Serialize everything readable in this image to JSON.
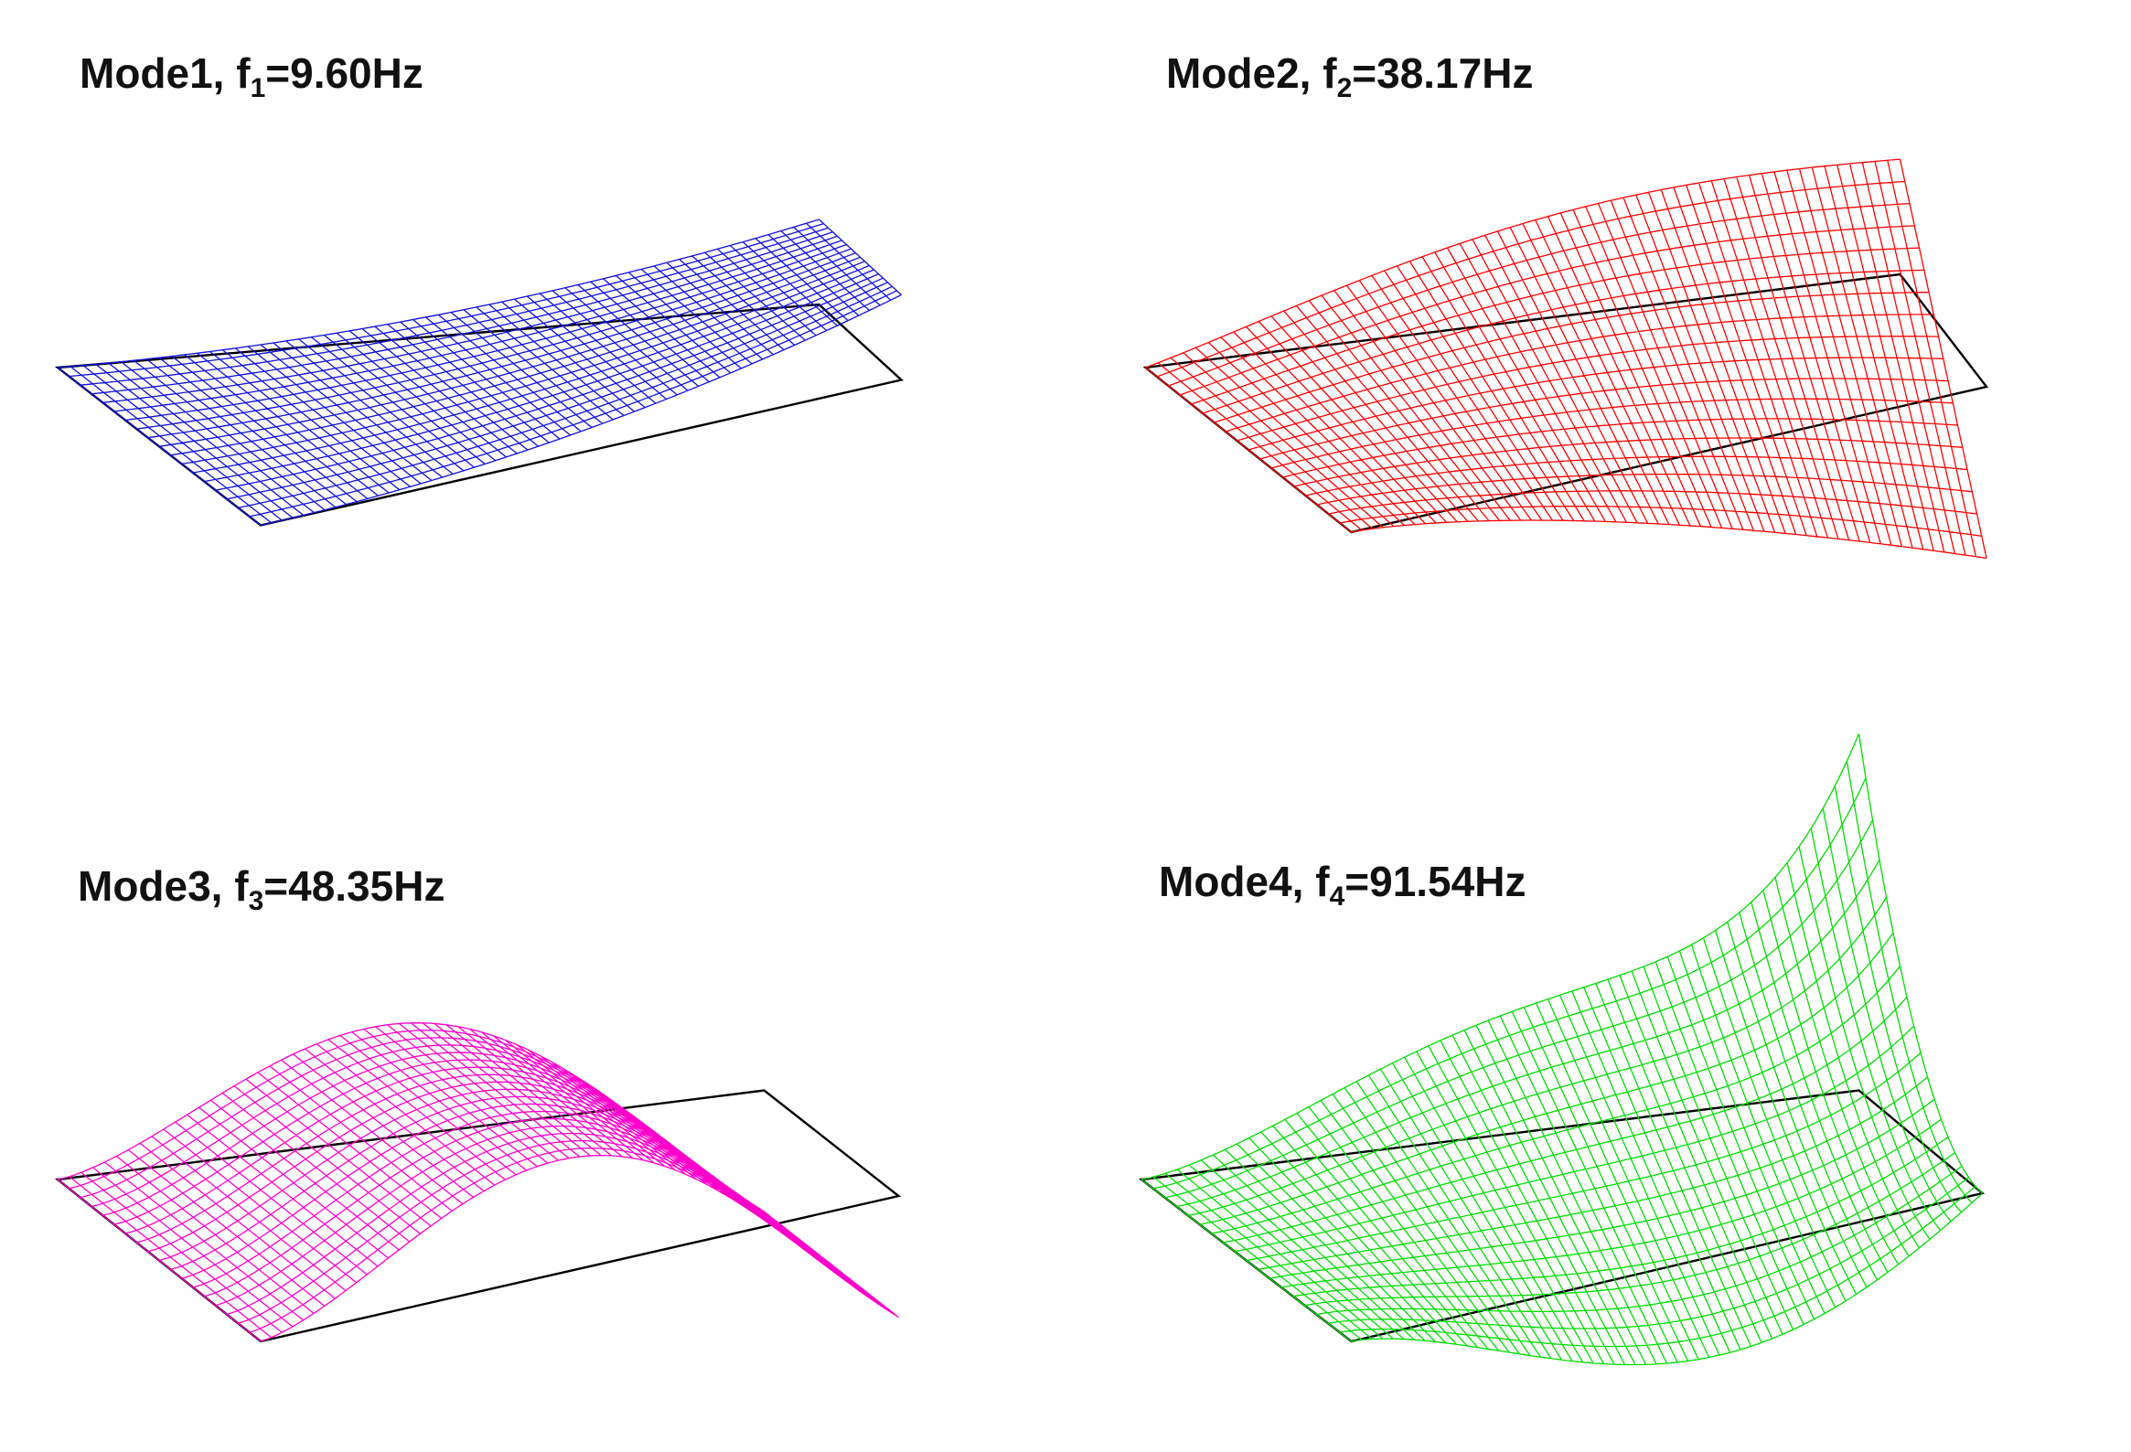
{
  "panels": [
    {
      "title": {
        "lead": "Mode1, f",
        "sub": "1",
        "tail": "=9.60Hz"
      }
    },
    {
      "title": {
        "lead": "Mode2, f",
        "sub": "2",
        "tail": "=38.17Hz"
      }
    },
    {
      "title": {
        "lead": "Mode3, f",
        "sub": "3",
        "tail": "=48.35Hz"
      }
    },
    {
      "title": {
        "lead": "Mode4, f",
        "sub": "4",
        "tail": "=91.54Hz"
      }
    }
  ]
}
